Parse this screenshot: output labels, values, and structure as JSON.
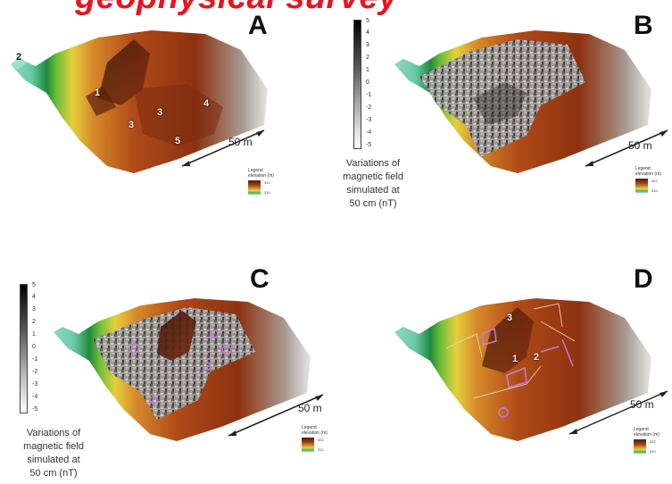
{
  "title": "geophysical survey",
  "panels": {
    "a": {
      "letter": "A",
      "scale": "50 m",
      "labels": [
        "1",
        "2",
        "3",
        "3",
        "4",
        "5"
      ]
    },
    "b": {
      "letter": "B",
      "scale": "50 m"
    },
    "c": {
      "letter": "C",
      "scale": "50 m"
    },
    "d": {
      "letter": "D",
      "scale": "50 m",
      "labels": [
        "1",
        "2",
        "3"
      ]
    }
  },
  "legend": {
    "title": "Legend",
    "subtitle": "elevation (m)",
    "high": "322",
    "low": "310"
  },
  "magnetic_scale": {
    "ticks": [
      "5",
      "4",
      "3",
      "2",
      "1",
      "0",
      "-1",
      "-2",
      "-3",
      "-4",
      "-5"
    ],
    "caption": [
      "Variations of",
      "magnetic field",
      "simulated at",
      "50 cm (nT)"
    ]
  },
  "colors": {
    "title": "#e8141e",
    "terrain_dark": "#4a1e10",
    "terrain_mid": "#b8521a",
    "terrain_light": "#e2b44a",
    "grass": "#4fb84a",
    "water": "#8fd8c0",
    "survey_outline": "#c878d8"
  }
}
